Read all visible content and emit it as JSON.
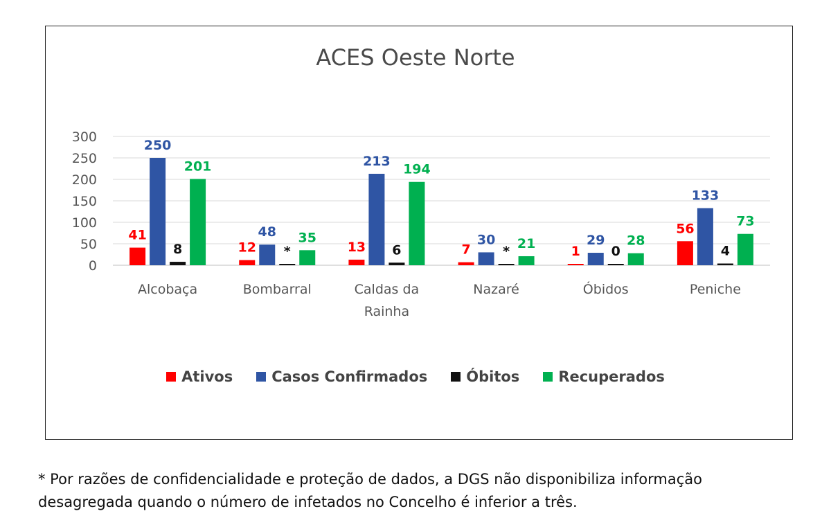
{
  "footnote": "* Por razões de confidencialidade e proteção de dados, a DGS não disponibiliza informação desagregada quando o número de infetados no Concelho é inferior a três.",
  "chart_data": {
    "type": "bar",
    "title": "ACES Oeste Norte",
    "categories": [
      "Alcobaça",
      "Bombarral",
      "Caldas da Rainha",
      "Nazaré",
      "Óbidos",
      "Peniche"
    ],
    "series": [
      {
        "name": "Ativos",
        "color": "#ff0000",
        "values": [
          41,
          12,
          13,
          7,
          1,
          56
        ],
        "labels": [
          "41",
          "12",
          "13",
          "7",
          "1",
          "56"
        ]
      },
      {
        "name": "Casos Confirmados",
        "color": "#2f55a4",
        "values": [
          250,
          48,
          213,
          30,
          29,
          133
        ],
        "labels": [
          "250",
          "48",
          "213",
          "30",
          "29",
          "133"
        ]
      },
      {
        "name": "Óbitos",
        "color": "#111111",
        "values": [
          8,
          0,
          6,
          0,
          0,
          4
        ],
        "labels": [
          "8",
          "*",
          "6",
          "*",
          "0",
          "4"
        ]
      },
      {
        "name": "Recuperados",
        "color": "#00b050",
        "values": [
          201,
          35,
          194,
          21,
          28,
          73
        ],
        "labels": [
          "201",
          "35",
          "194",
          "21",
          "28",
          "73"
        ]
      }
    ],
    "yticks": [
      0,
      50,
      100,
      150,
      200,
      250,
      300
    ],
    "ylim": [
      0,
      300
    ],
    "grid": true,
    "legend_position": "bottom"
  }
}
